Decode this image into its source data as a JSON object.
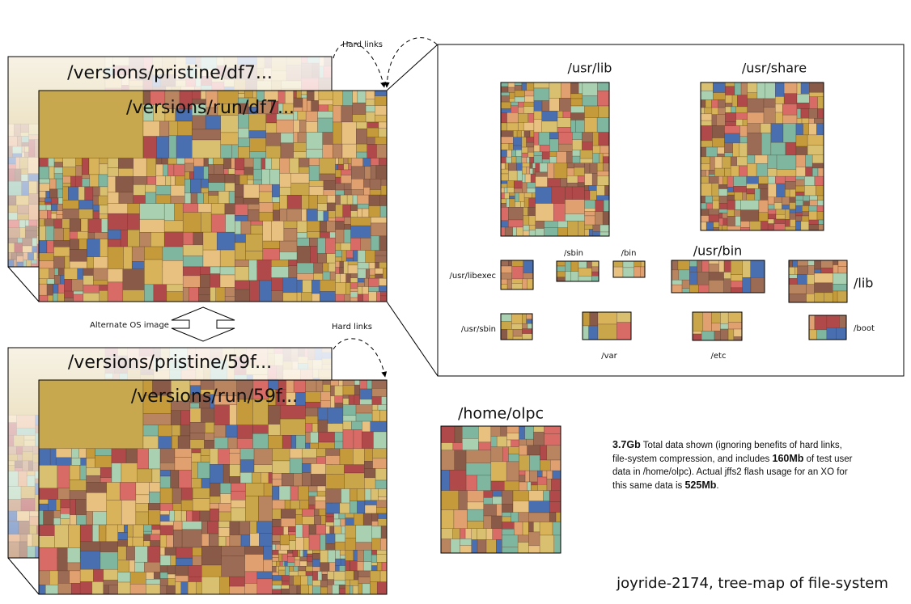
{
  "top_image": {
    "pristine": "/versions/pristine/df7...",
    "run": "/versions/run/df7...",
    "hard_links": "Hard links"
  },
  "alternate_label": "Alternate OS image",
  "bottom_image": {
    "pristine": "/versions/pristine/59f...",
    "run": "/versions/run/59f...",
    "hard_links": "Hard links"
  },
  "detail": {
    "panels": [
      {
        "label": "/usr/lib"
      },
      {
        "label": "/usr/share"
      },
      {
        "label": "/sbin"
      },
      {
        "label": "/bin"
      },
      {
        "label": "/usr/bin"
      },
      {
        "label": "/usr/libexec"
      },
      {
        "label": "/lib"
      },
      {
        "label": "/usr/sbin"
      },
      {
        "label": "/var"
      },
      {
        "label": "/etc"
      },
      {
        "label": "/boot"
      }
    ]
  },
  "home": {
    "label": "/home/olpc"
  },
  "note": {
    "parts": [
      "3.7Gb",
      " Total data shown (ignoring benefits of hard links, file-system compression, and includes ",
      "160Mb",
      " of test user data in /home/olpc). Actual jffs2 flash usage for an XO for this same data is ",
      "525Mb",
      "."
    ]
  },
  "caption": "joyride-2174, tree-map of file-system"
}
